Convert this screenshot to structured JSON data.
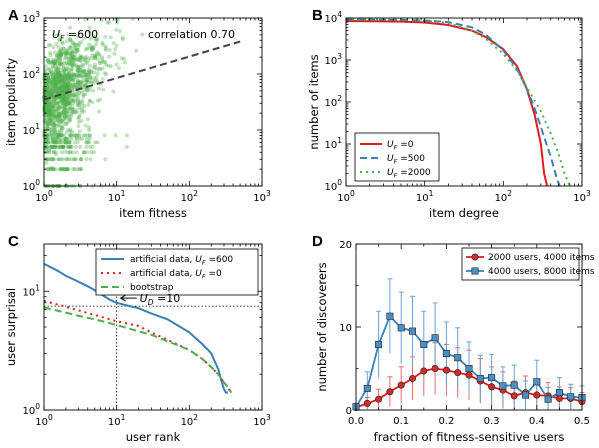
{
  "colors": {
    "green": "#4daf4a",
    "red": "#e41a1c",
    "blue": "#3a7fb6",
    "blue_marker": "#4a8fc8",
    "gray": "#555555"
  },
  "panels": {
    "A": "A",
    "B": "B",
    "C": "C",
    "D": "D"
  },
  "chart_data": [
    {
      "id": "A",
      "type": "scatter",
      "xlabel": "item fitness",
      "ylabel": "item popularity",
      "xscale": "log",
      "yscale": "log",
      "xlim": [
        1,
        1000
      ],
      "ylim": [
        1,
        1000
      ],
      "annotation_uf": "U_F = 600",
      "annotation_uf_main": "U",
      "annotation_uf_sub": "F",
      "annotation_uf_rest": " =600",
      "annotation_corr": "correlation 0.70",
      "fit_line": {
        "x": [
          1,
          500
        ],
        "y": [
          35,
          380
        ],
        "style": "dashed"
      },
      "points_description_count": 1400,
      "x_ticks": [
        "10^0",
        "10^1",
        "10^2",
        "10^3"
      ],
      "y_ticks": [
        "10^0",
        "10^1",
        "10^2",
        "10^3"
      ]
    },
    {
      "id": "B",
      "type": "line",
      "xlabel": "item degree",
      "ylabel": "number of items",
      "xscale": "log",
      "yscale": "log",
      "xlim": [
        1,
        1000
      ],
      "ylim": [
        1,
        10000
      ],
      "legend_position": "lower-left",
      "series": [
        {
          "name": "U_F = 0",
          "label_main": "U",
          "label_sub": "F",
          "label_rest": " =0",
          "style": "solid",
          "x": [
            1,
            5,
            10,
            20,
            40,
            60,
            100,
            150,
            200,
            250,
            300,
            330,
            360
          ],
          "y": [
            8500,
            8200,
            7800,
            6800,
            5000,
            3500,
            1800,
            700,
            200,
            50,
            10,
            2,
            1
          ]
        },
        {
          "name": "U_F = 500",
          "label_main": "U",
          "label_sub": "F",
          "label_rest": " =500",
          "style": "dashed",
          "x": [
            1,
            5,
            10,
            20,
            40,
            60,
            100,
            150,
            200,
            250,
            300,
            400,
            480,
            520
          ],
          "y": [
            9200,
            9000,
            8700,
            8000,
            6000,
            4000,
            1700,
            600,
            200,
            70,
            25,
            5,
            1.5,
            1
          ]
        },
        {
          "name": "U_F = 2000",
          "label_main": "U",
          "label_sub": "F",
          "label_rest": " =2000",
          "style": "dotted",
          "x": [
            1,
            5,
            10,
            20,
            40,
            60,
            100,
            150,
            200,
            300,
            400,
            500,
            600,
            700
          ],
          "y": [
            9300,
            9100,
            8700,
            7600,
            5000,
            3200,
            1400,
            550,
            220,
            60,
            18,
            6,
            2,
            1
          ]
        }
      ],
      "x_ticks": [
        "10^0",
        "10^1",
        "10^2",
        "10^3"
      ],
      "y_ticks": [
        "10^0",
        "10^1",
        "10^2",
        "10^3",
        "10^4"
      ]
    },
    {
      "id": "C",
      "type": "line",
      "xlabel": "user rank",
      "ylabel": "user surprisal",
      "xscale": "log",
      "yscale": "log",
      "xlim": [
        1,
        1000
      ],
      "ylim": [
        1,
        25
      ],
      "legend_position": "top-right",
      "reference_x": 10,
      "reference_y": 7.5,
      "annotation": "U_D = 10",
      "annotation_main": "U",
      "annotation_sub": "D",
      "annotation_rest": " =10",
      "series": [
        {
          "name": "artificial data, U_F = 600",
          "label_pre": "artificial data, ",
          "label_main": "U",
          "label_sub": "F",
          "label_rest": " =600",
          "style": "solid",
          "x": [
            1,
            1.5,
            2,
            3,
            4,
            5,
            6,
            8,
            10,
            15,
            20,
            30,
            50,
            100,
            150,
            200,
            250,
            290,
            300,
            320,
            340
          ],
          "y": [
            17,
            15,
            13.5,
            12,
            11,
            10.2,
            9.5,
            8.5,
            8,
            7.5,
            7.2,
            6.5,
            5.8,
            4.5,
            3.6,
            3,
            2.2,
            1.6,
            1.5,
            1.4,
            1.4
          ]
        },
        {
          "name": "artificial data, U_F = 0",
          "label_pre": "artificial data, ",
          "label_main": "U",
          "label_sub": "F",
          "label_rest": " =0",
          "style": "dotted",
          "x": [
            1,
            2,
            3,
            5,
            10,
            20,
            30,
            50,
            100,
            150,
            200,
            250,
            300,
            330,
            350,
            380
          ],
          "y": [
            8.3,
            7.4,
            6.9,
            6.3,
            5.6,
            5.1,
            4.5,
            3.9,
            3.2,
            2.7,
            2.3,
            2,
            1.7,
            1.6,
            1.5,
            1.4
          ]
        },
        {
          "name": "bootstrap",
          "label_pre": "bootstrap",
          "label_main": "",
          "label_sub": "",
          "label_rest": "",
          "style": "dashed",
          "x": [
            1,
            2,
            3,
            5,
            10,
            20,
            30,
            50,
            100,
            150,
            200,
            250,
            300,
            330,
            350,
            380
          ],
          "y": [
            7.3,
            6.6,
            6.2,
            5.8,
            5.2,
            4.6,
            4.3,
            3.8,
            3.2,
            2.7,
            2.3,
            2,
            1.7,
            1.6,
            1.5,
            1.4
          ]
        }
      ],
      "x_ticks": [
        "10^0",
        "10^1",
        "10^2",
        "10^3"
      ],
      "y_ticks": [
        "10^0",
        "10^1"
      ]
    },
    {
      "id": "D",
      "type": "line",
      "xlabel": "fraction of fitness-sensitive users",
      "ylabel": "number of discoverers",
      "xlim": [
        0,
        0.5
      ],
      "ylim": [
        0,
        20
      ],
      "legend_position": "top-right",
      "x_ticks": [
        "0.0",
        "0.1",
        "0.2",
        "0.3",
        "0.4",
        "0.5"
      ],
      "y_ticks": [
        "0",
        "10",
        "20"
      ],
      "series": [
        {
          "name": "2000 users, 4000 items",
          "marker": "circle",
          "color": "red",
          "x": [
            0.0,
            0.025,
            0.05,
            0.075,
            0.1,
            0.125,
            0.15,
            0.175,
            0.2,
            0.225,
            0.25,
            0.275,
            0.3,
            0.325,
            0.35,
            0.375,
            0.4,
            0.425,
            0.45,
            0.475,
            0.5
          ],
          "y": [
            0.3,
            0.8,
            1.3,
            2.2,
            3.0,
            3.8,
            4.7,
            5.0,
            4.8,
            4.5,
            4.2,
            3.5,
            2.8,
            2.4,
            1.7,
            2.1,
            1.8,
            1.7,
            1.4,
            1.4,
            1.0
          ],
          "err": [
            0.2,
            0.7,
            1.2,
            1.8,
            2.2,
            2.6,
            3.0,
            3.1,
            3.1,
            3.0,
            3.0,
            2.7,
            2.4,
            2.2,
            1.8,
            2.0,
            1.7,
            1.6,
            1.4,
            1.3,
            1.1
          ]
        },
        {
          "name": "4000 users, 8000 items",
          "marker": "square",
          "color": "blue",
          "x": [
            0.0,
            0.025,
            0.05,
            0.075,
            0.1,
            0.125,
            0.15,
            0.175,
            0.2,
            0.225,
            0.25,
            0.275,
            0.3,
            0.325,
            0.35,
            0.375,
            0.4,
            0.425,
            0.45,
            0.475,
            0.5
          ],
          "y": [
            0.4,
            2.6,
            7.9,
            11.3,
            9.9,
            9.5,
            7.9,
            8.7,
            6.8,
            6.3,
            5.0,
            3.8,
            3.9,
            2.9,
            3.0,
            1.8,
            3.4,
            1.3,
            2.1,
            1.6,
            1.5
          ],
          "err": [
            0.3,
            2.0,
            4.0,
            4.5,
            4.3,
            4.2,
            4.0,
            4.2,
            3.8,
            3.6,
            3.2,
            2.8,
            2.8,
            2.3,
            2.4,
            1.7,
            2.6,
            1.4,
            1.8,
            1.5,
            1.4
          ]
        }
      ]
    }
  ]
}
